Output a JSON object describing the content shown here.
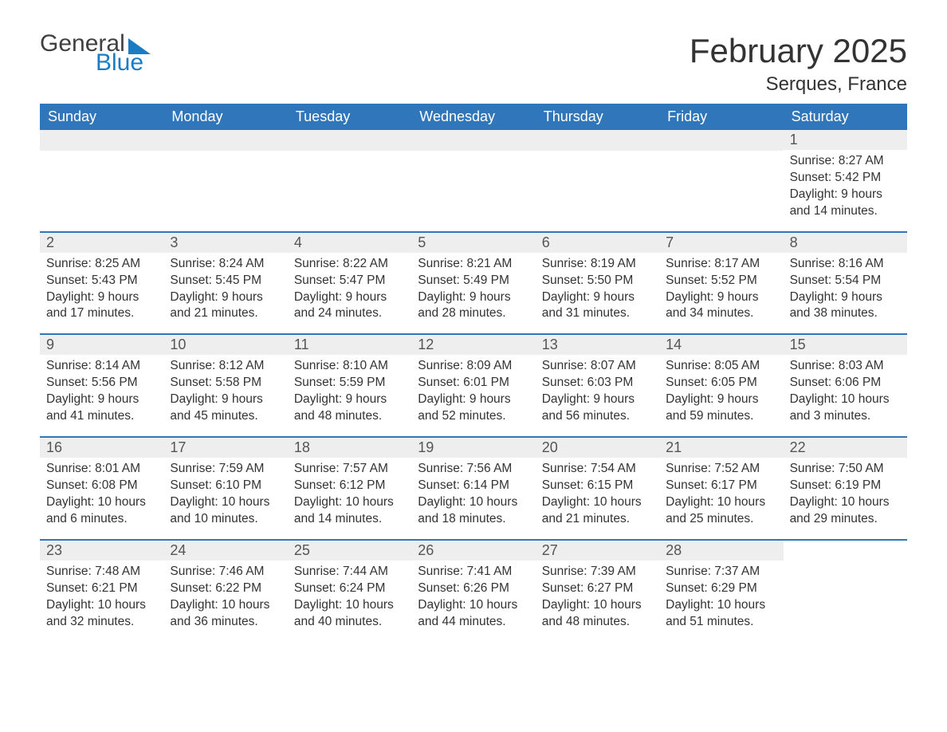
{
  "brand": {
    "word1": "General",
    "word2": "Blue",
    "word1_color": "#404040",
    "word2_color": "#1a7dc4"
  },
  "title": "February 2025",
  "location": "Serques, France",
  "colors": {
    "header_bg": "#3076ba",
    "header_text": "#ffffff",
    "daynum_bg": "#eeeeee",
    "row_divider": "#3076ba",
    "body_text": "#333333",
    "page_bg": "#ffffff"
  },
  "layout": {
    "columns": 7,
    "start_day": "Sunday",
    "first_of_month_column_index": 6
  },
  "days_of_week": [
    "Sunday",
    "Monday",
    "Tuesday",
    "Wednesday",
    "Thursday",
    "Friday",
    "Saturday"
  ],
  "weeks": [
    [
      null,
      null,
      null,
      null,
      null,
      null,
      {
        "n": "1",
        "sunrise": "Sunrise: 8:27 AM",
        "sunset": "Sunset: 5:42 PM",
        "daylight": "Daylight: 9 hours and 14 minutes."
      }
    ],
    [
      {
        "n": "2",
        "sunrise": "Sunrise: 8:25 AM",
        "sunset": "Sunset: 5:43 PM",
        "daylight": "Daylight: 9 hours and 17 minutes."
      },
      {
        "n": "3",
        "sunrise": "Sunrise: 8:24 AM",
        "sunset": "Sunset: 5:45 PM",
        "daylight": "Daylight: 9 hours and 21 minutes."
      },
      {
        "n": "4",
        "sunrise": "Sunrise: 8:22 AM",
        "sunset": "Sunset: 5:47 PM",
        "daylight": "Daylight: 9 hours and 24 minutes."
      },
      {
        "n": "5",
        "sunrise": "Sunrise: 8:21 AM",
        "sunset": "Sunset: 5:49 PM",
        "daylight": "Daylight: 9 hours and 28 minutes."
      },
      {
        "n": "6",
        "sunrise": "Sunrise: 8:19 AM",
        "sunset": "Sunset: 5:50 PM",
        "daylight": "Daylight: 9 hours and 31 minutes."
      },
      {
        "n": "7",
        "sunrise": "Sunrise: 8:17 AM",
        "sunset": "Sunset: 5:52 PM",
        "daylight": "Daylight: 9 hours and 34 minutes."
      },
      {
        "n": "8",
        "sunrise": "Sunrise: 8:16 AM",
        "sunset": "Sunset: 5:54 PM",
        "daylight": "Daylight: 9 hours and 38 minutes."
      }
    ],
    [
      {
        "n": "9",
        "sunrise": "Sunrise: 8:14 AM",
        "sunset": "Sunset: 5:56 PM",
        "daylight": "Daylight: 9 hours and 41 minutes."
      },
      {
        "n": "10",
        "sunrise": "Sunrise: 8:12 AM",
        "sunset": "Sunset: 5:58 PM",
        "daylight": "Daylight: 9 hours and 45 minutes."
      },
      {
        "n": "11",
        "sunrise": "Sunrise: 8:10 AM",
        "sunset": "Sunset: 5:59 PM",
        "daylight": "Daylight: 9 hours and 48 minutes."
      },
      {
        "n": "12",
        "sunrise": "Sunrise: 8:09 AM",
        "sunset": "Sunset: 6:01 PM",
        "daylight": "Daylight: 9 hours and 52 minutes."
      },
      {
        "n": "13",
        "sunrise": "Sunrise: 8:07 AM",
        "sunset": "Sunset: 6:03 PM",
        "daylight": "Daylight: 9 hours and 56 minutes."
      },
      {
        "n": "14",
        "sunrise": "Sunrise: 8:05 AM",
        "sunset": "Sunset: 6:05 PM",
        "daylight": "Daylight: 9 hours and 59 minutes."
      },
      {
        "n": "15",
        "sunrise": "Sunrise: 8:03 AM",
        "sunset": "Sunset: 6:06 PM",
        "daylight": "Daylight: 10 hours and 3 minutes."
      }
    ],
    [
      {
        "n": "16",
        "sunrise": "Sunrise: 8:01 AM",
        "sunset": "Sunset: 6:08 PM",
        "daylight": "Daylight: 10 hours and 6 minutes."
      },
      {
        "n": "17",
        "sunrise": "Sunrise: 7:59 AM",
        "sunset": "Sunset: 6:10 PM",
        "daylight": "Daylight: 10 hours and 10 minutes."
      },
      {
        "n": "18",
        "sunrise": "Sunrise: 7:57 AM",
        "sunset": "Sunset: 6:12 PM",
        "daylight": "Daylight: 10 hours and 14 minutes."
      },
      {
        "n": "19",
        "sunrise": "Sunrise: 7:56 AM",
        "sunset": "Sunset: 6:14 PM",
        "daylight": "Daylight: 10 hours and 18 minutes."
      },
      {
        "n": "20",
        "sunrise": "Sunrise: 7:54 AM",
        "sunset": "Sunset: 6:15 PM",
        "daylight": "Daylight: 10 hours and 21 minutes."
      },
      {
        "n": "21",
        "sunrise": "Sunrise: 7:52 AM",
        "sunset": "Sunset: 6:17 PM",
        "daylight": "Daylight: 10 hours and 25 minutes."
      },
      {
        "n": "22",
        "sunrise": "Sunrise: 7:50 AM",
        "sunset": "Sunset: 6:19 PM",
        "daylight": "Daylight: 10 hours and 29 minutes."
      }
    ],
    [
      {
        "n": "23",
        "sunrise": "Sunrise: 7:48 AM",
        "sunset": "Sunset: 6:21 PM",
        "daylight": "Daylight: 10 hours and 32 minutes."
      },
      {
        "n": "24",
        "sunrise": "Sunrise: 7:46 AM",
        "sunset": "Sunset: 6:22 PM",
        "daylight": "Daylight: 10 hours and 36 minutes."
      },
      {
        "n": "25",
        "sunrise": "Sunrise: 7:44 AM",
        "sunset": "Sunset: 6:24 PM",
        "daylight": "Daylight: 10 hours and 40 minutes."
      },
      {
        "n": "26",
        "sunrise": "Sunrise: 7:41 AM",
        "sunset": "Sunset: 6:26 PM",
        "daylight": "Daylight: 10 hours and 44 minutes."
      },
      {
        "n": "27",
        "sunrise": "Sunrise: 7:39 AM",
        "sunset": "Sunset: 6:27 PM",
        "daylight": "Daylight: 10 hours and 48 minutes."
      },
      {
        "n": "28",
        "sunrise": "Sunrise: 7:37 AM",
        "sunset": "Sunset: 6:29 PM",
        "daylight": "Daylight: 10 hours and 51 minutes."
      },
      null
    ]
  ]
}
